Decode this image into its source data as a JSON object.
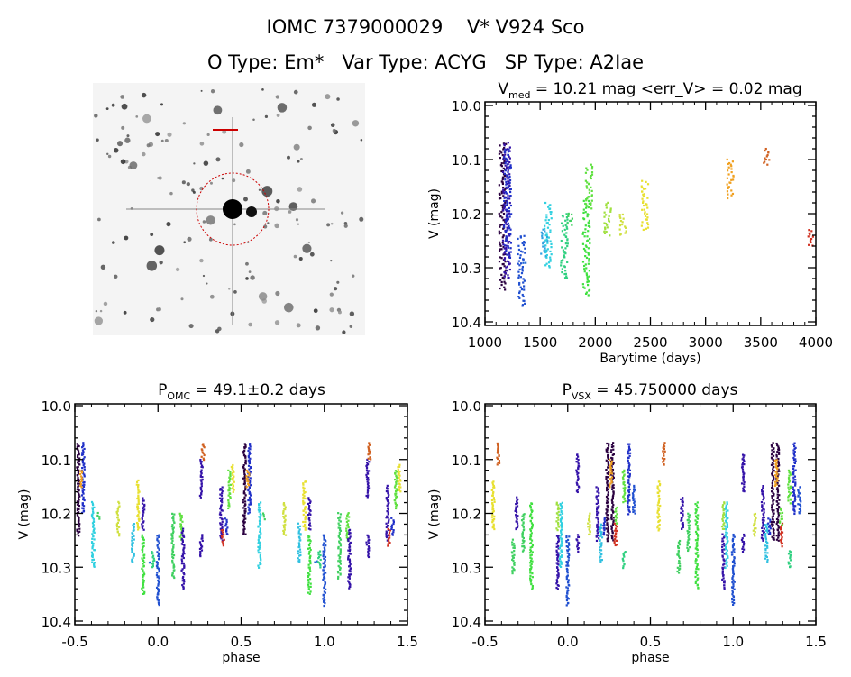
{
  "header": {
    "title": "IOMC 7379000029    V* V924 Sco",
    "subtitle": "O Type: Em*   Var Type: ACYG   SP Type: A2Iae"
  },
  "chart_data": [
    {
      "type": "scatter",
      "panel": "light-curve",
      "title_main": "V",
      "title_sub": "med",
      "title_rest": " = 10.21 mag <err_V> = 0.02 mag",
      "xlabel": "Barytime (days)",
      "ylabel": "V (mag)",
      "xlim": [
        1000,
        4000
      ],
      "ylim": [
        10.4,
        10.0
      ],
      "y_inverted": true,
      "xticks": [
        "1000",
        "1500",
        "2000",
        "2500",
        "3000",
        "3500",
        "4000"
      ],
      "yticks": [
        "10.0",
        "10.1",
        "10.2",
        "10.3",
        "10.4"
      ],
      "groups": [
        {
          "x": 1160,
          "mag": [
            10.07,
            10.34
          ],
          "color": "#2a0040"
        },
        {
          "x": 1195,
          "mag": [
            10.07,
            10.32
          ],
          "color": "#3412a8"
        },
        {
          "x": 1205,
          "mag": [
            10.08,
            10.28
          ],
          "color": "#2030c8"
        },
        {
          "x": 1330,
          "mag": [
            10.24,
            10.37
          ],
          "color": "#2050d0"
        },
        {
          "x": 1370,
          "mag": [
            10.29,
            10.29
          ],
          "color": "#2068d8"
        },
        {
          "x": 1540,
          "mag": [
            10.23,
            10.28
          ],
          "color": "#30a0e0"
        },
        {
          "x": 1570,
          "mag": [
            10.18,
            10.3
          ],
          "color": "#30d0e0"
        },
        {
          "x": 1720,
          "mag": [
            10.2,
            10.32
          ],
          "color": "#30d080"
        },
        {
          "x": 1760,
          "mag": [
            10.2,
            10.22
          ],
          "color": "#40d060"
        },
        {
          "x": 1920,
          "mag": [
            10.17,
            10.35
          ],
          "color": "#40e040"
        },
        {
          "x": 1945,
          "mag": [
            10.11,
            10.19
          ],
          "color": "#60e040"
        },
        {
          "x": 2110,
          "mag": [
            10.18,
            10.24
          ],
          "color": "#a0e040"
        },
        {
          "x": 2250,
          "mag": [
            10.2,
            10.24
          ],
          "color": "#d0e040"
        },
        {
          "x": 2450,
          "mag": [
            10.14,
            10.23
          ],
          "color": "#e8e030"
        },
        {
          "x": 3220,
          "mag": [
            10.1,
            10.17
          ],
          "color": "#f0a020"
        },
        {
          "x": 3560,
          "mag": [
            10.08,
            10.11
          ],
          "color": "#d06020"
        },
        {
          "x": 3950,
          "mag": [
            10.23,
            10.26
          ],
          "color": "#d03020"
        }
      ]
    },
    {
      "type": "scatter",
      "panel": "phase-omc",
      "title_main": "P",
      "title_sub": "OMC",
      "title_rest": " = 49.1±0.2 days",
      "xlabel": "phase",
      "ylabel": "V (mag)",
      "xlim": [
        -0.5,
        1.5
      ],
      "ylim": [
        10.4,
        10.0
      ],
      "y_inverted": true,
      "xticks": [
        "-0.5",
        "0.0",
        "0.5",
        "1.0",
        "1.5"
      ],
      "yticks": [
        "10.0",
        "10.1",
        "10.2",
        "10.3",
        "10.4"
      ],
      "repeat_phase": true,
      "groups": [
        {
          "x": -0.48,
          "mag": [
            10.07,
            10.24
          ],
          "color": "#2a0040"
        },
        {
          "x": -0.45,
          "mag": [
            10.07,
            10.2
          ],
          "color": "#2030c8"
        },
        {
          "x": -0.46,
          "mag": [
            10.12,
            10.15
          ],
          "color": "#f0a020"
        },
        {
          "x": -0.39,
          "mag": [
            10.18,
            10.3
          ],
          "color": "#30d0e0"
        },
        {
          "x": -0.36,
          "mag": [
            10.2,
            10.21
          ],
          "color": "#40d060"
        },
        {
          "x": -0.24,
          "mag": [
            10.18,
            10.24
          ],
          "color": "#d0e040"
        },
        {
          "x": -0.15,
          "mag": [
            10.22,
            10.29
          ],
          "color": "#30c0e0"
        },
        {
          "x": -0.12,
          "mag": [
            10.14,
            10.23
          ],
          "color": "#e8e030"
        },
        {
          "x": -0.09,
          "mag": [
            10.17,
            10.23
          ],
          "color": "#3412a8"
        },
        {
          "x": -0.09,
          "mag": [
            10.24,
            10.35
          ],
          "color": "#40e040"
        },
        {
          "x": -0.05,
          "mag": [
            10.29,
            10.29
          ],
          "color": "#2068d8"
        },
        {
          "x": -0.03,
          "mag": [
            10.27,
            10.3
          ],
          "color": "#30d080"
        },
        {
          "x": 0.0,
          "mag": [
            10.24,
            10.37
          ],
          "color": "#2050d0"
        },
        {
          "x": 0.09,
          "mag": [
            10.2,
            10.32
          ],
          "color": "#40d060"
        },
        {
          "x": 0.14,
          "mag": [
            10.2,
            10.25
          ],
          "color": "#60e040"
        },
        {
          "x": 0.15,
          "mag": [
            10.23,
            10.34
          ],
          "color": "#3412a8"
        },
        {
          "x": 0.26,
          "mag": [
            10.1,
            10.17
          ],
          "color": "#3412a8"
        },
        {
          "x": 0.26,
          "mag": [
            10.24,
            10.28
          ],
          "color": "#3412a8"
        },
        {
          "x": 0.27,
          "mag": [
            10.07,
            10.1
          ],
          "color": "#d06020"
        },
        {
          "x": 0.38,
          "mag": [
            10.15,
            10.25
          ],
          "color": "#3412a8"
        },
        {
          "x": 0.39,
          "mag": [
            10.23,
            10.26
          ],
          "color": "#d03020"
        },
        {
          "x": 0.41,
          "mag": [
            10.21,
            10.24
          ],
          "color": "#2030c8"
        },
        {
          "x": 0.43,
          "mag": [
            10.12,
            10.19
          ],
          "color": "#60e040"
        },
        {
          "x": 0.45,
          "mag": [
            10.11,
            10.16
          ],
          "color": "#e8e030"
        }
      ]
    },
    {
      "type": "scatter",
      "panel": "phase-vsx",
      "title_main": "P",
      "title_sub": "VSX",
      "title_rest": " = 45.750000 days",
      "xlabel": "phase",
      "ylabel": "V (mag)",
      "xlim": [
        -0.5,
        1.5
      ],
      "ylim": [
        10.4,
        10.0
      ],
      "y_inverted": true,
      "xticks": [
        "-0.5",
        "0.0",
        "0.5",
        "1.0",
        "1.5"
      ],
      "yticks": [
        "10.0",
        "10.1",
        "10.2",
        "10.3",
        "10.4"
      ],
      "repeat_phase": true,
      "groups": [
        {
          "x": -0.45,
          "mag": [
            10.14,
            10.23
          ],
          "color": "#e8e030"
        },
        {
          "x": -0.42,
          "mag": [
            10.07,
            10.11
          ],
          "color": "#d06020"
        },
        {
          "x": -0.33,
          "mag": [
            10.25,
            10.31
          ],
          "color": "#40d060"
        },
        {
          "x": -0.31,
          "mag": [
            10.17,
            10.23
          ],
          "color": "#3412a8"
        },
        {
          "x": -0.27,
          "mag": [
            10.2,
            10.27
          ],
          "color": "#40d060"
        },
        {
          "x": -0.22,
          "mag": [
            10.18,
            10.34
          ],
          "color": "#40e040"
        },
        {
          "x": -0.06,
          "mag": [
            10.18,
            10.23
          ],
          "color": "#a0e040"
        },
        {
          "x": -0.06,
          "mag": [
            10.24,
            10.34
          ],
          "color": "#3412a8"
        },
        {
          "x": -0.04,
          "mag": [
            10.18,
            10.3
          ],
          "color": "#30d0e0"
        },
        {
          "x": 0.0,
          "mag": [
            10.24,
            10.37
          ],
          "color": "#2050d0"
        },
        {
          "x": 0.06,
          "mag": [
            10.09,
            10.16
          ],
          "color": "#3412a8"
        },
        {
          "x": 0.06,
          "mag": [
            10.24,
            10.27
          ],
          "color": "#3412a8"
        },
        {
          "x": 0.13,
          "mag": [
            10.2,
            10.24
          ],
          "color": "#d0e040"
        },
        {
          "x": 0.18,
          "mag": [
            10.15,
            10.25
          ],
          "color": "#3412a8"
        },
        {
          "x": 0.2,
          "mag": [
            10.22,
            10.29
          ],
          "color": "#30c0e0"
        },
        {
          "x": 0.22,
          "mag": [
            10.21,
            10.24
          ],
          "color": "#2030c8"
        },
        {
          "x": 0.24,
          "mag": [
            10.07,
            10.25
          ],
          "color": "#2a0040"
        },
        {
          "x": 0.27,
          "mag": [
            10.07,
            10.25
          ],
          "color": "#2a0040"
        },
        {
          "x": 0.26,
          "mag": [
            10.1,
            10.15
          ],
          "color": "#f0a020"
        },
        {
          "x": 0.29,
          "mag": [
            10.22,
            10.26
          ],
          "color": "#d03020"
        },
        {
          "x": 0.29,
          "mag": [
            10.19,
            10.22
          ],
          "color": "#60e040"
        },
        {
          "x": 0.34,
          "mag": [
            10.27,
            10.3
          ],
          "color": "#30d080"
        },
        {
          "x": 0.34,
          "mag": [
            10.12,
            10.18
          ],
          "color": "#60e040"
        },
        {
          "x": 0.37,
          "mag": [
            10.07,
            10.2
          ],
          "color": "#2030c8"
        },
        {
          "x": 0.4,
          "mag": [
            10.15,
            10.2
          ],
          "color": "#2050d0"
        }
      ]
    }
  ],
  "sky_image": {
    "marker_color": "#cc0000"
  }
}
